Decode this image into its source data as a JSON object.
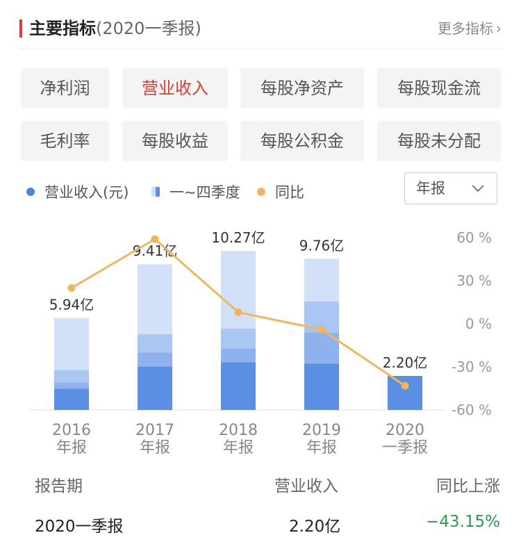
{
  "header": {
    "title": "主要指标",
    "subtitle": "(2020一季报)",
    "more_label": "更多指标",
    "more_chevron": "›"
  },
  "tabs": [
    {
      "label": "净利润",
      "active": false
    },
    {
      "label": "营业收入",
      "active": true
    },
    {
      "label": "每股净资产",
      "active": false
    },
    {
      "label": "每股现金流",
      "active": false
    },
    {
      "label": "毛利率",
      "active": false
    },
    {
      "label": "每股收益",
      "active": false
    },
    {
      "label": "每股公积金",
      "active": false
    },
    {
      "label": "每股未分配",
      "active": false
    }
  ],
  "legend": {
    "revenue": "营业收入(元)",
    "quarters": "一~四季度",
    "yoy": "同比"
  },
  "period_select": {
    "value": "年报",
    "icon": "chevron-down-icon"
  },
  "colors": {
    "accent": "#e03b30",
    "q1": "#5b8fe3",
    "q2": "#8db2ee",
    "q3": "#aac6f2",
    "q4": "#d3e1f8",
    "line": "#f0b65a",
    "negative": "#2a9d4a"
  },
  "chart_data": {
    "type": "bar",
    "categories": [
      [
        "2016",
        "年报"
      ],
      [
        "2017",
        "年报"
      ],
      [
        "2018",
        "年报"
      ],
      [
        "2019",
        "年报"
      ],
      [
        "2020",
        "一季报"
      ]
    ],
    "bar_labels": [
      "5.94亿",
      "9.41亿",
      "10.27亿",
      "9.76亿",
      "2.20亿"
    ],
    "stacks": [
      [
        1.37,
        0.38,
        0.83,
        3.36
      ],
      [
        2.8,
        0.9,
        1.2,
        4.51
      ],
      [
        3.08,
        0.9,
        1.28,
        5.01
      ],
      [
        3.0,
        2.0,
        2.0,
        2.76
      ],
      [
        2.2,
        0,
        0,
        0
      ]
    ],
    "y_left_range": [
      0,
      12
    ],
    "series": [
      {
        "name": "同比",
        "values": [
          25,
          59,
          8,
          -4,
          -43.15
        ]
      }
    ],
    "y_right_ticks": [
      "60 %",
      "30 %",
      "0 %",
      "-30 %",
      "-60 %"
    ],
    "y_right_range": [
      -60,
      60
    ]
  },
  "table": {
    "headers": [
      "报告期",
      "营业收入",
      "同比上涨"
    ],
    "rows": [
      [
        "2020一季报",
        "2.20亿",
        "−43.15%"
      ]
    ]
  }
}
